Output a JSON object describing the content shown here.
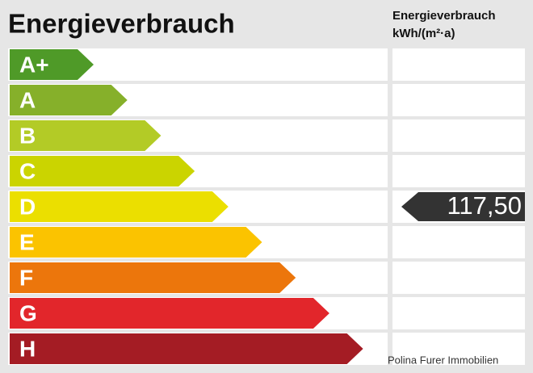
{
  "title": "Energieverbrauch",
  "unit_header": {
    "line1": "Energieverbrauch",
    "line2": "kWh/(m²·a)"
  },
  "classes": [
    {
      "label": "A+",
      "color": "#4f9a28"
    },
    {
      "label": "A",
      "color": "#86b02a"
    },
    {
      "label": "B",
      "color": "#b3cb26"
    },
    {
      "label": "C",
      "color": "#cbd400"
    },
    {
      "label": "D",
      "color": "#ebdf00"
    },
    {
      "label": "E",
      "color": "#fbc300"
    },
    {
      "label": "F",
      "color": "#ec760c"
    },
    {
      "label": "G",
      "color": "#e2262b"
    },
    {
      "label": "H",
      "color": "#a41c24"
    }
  ],
  "indicator": {
    "class": "D",
    "text": "117,50",
    "color": "#333333"
  },
  "watermark": "Polina Furer Immobilien"
}
